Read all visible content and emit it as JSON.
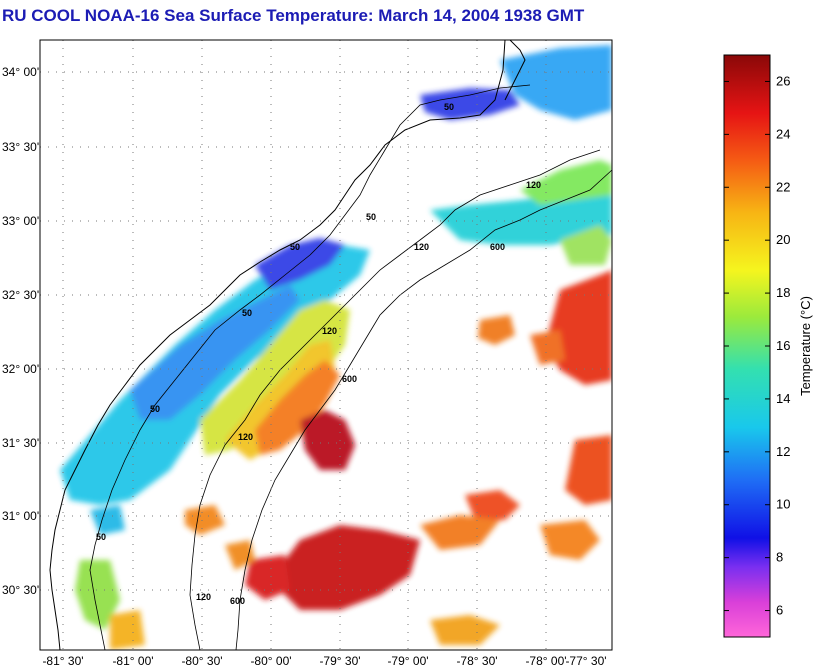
{
  "title": "RU COOL  NOAA-16  Sea Surface Temperature:  March 14, 2004 1938 GMT",
  "lat_labels": [
    "34° 00'",
    "33° 30'",
    "33° 00'",
    "32° 30'",
    "32° 00'",
    "31° 30'",
    "31° 00'",
    "30° 30'"
  ],
  "lon_labels": [
    "-81° 30'",
    "-81° 00'",
    "-80° 30'",
    "-80° 00'",
    "-79° 30'",
    "-79° 00'",
    "-78° 30'",
    "-78° 00'",
    "-77° 30'"
  ],
  "contour_labels": [
    "50",
    "50",
    "50",
    "50",
    "50",
    "50",
    "120",
    "120",
    "120",
    "120",
    "120",
    "600",
    "600",
    "600"
  ],
  "colorbar": {
    "title": "Temperature (°C)",
    "min": 5,
    "max": 27,
    "ticks": [
      "6",
      "8",
      "10",
      "12",
      "14",
      "16",
      "18",
      "20",
      "22",
      "24",
      "26"
    ]
  },
  "colors": {
    "title": "#1c1cb4",
    "land": "#ffffff",
    "coast": "#000000"
  }
}
